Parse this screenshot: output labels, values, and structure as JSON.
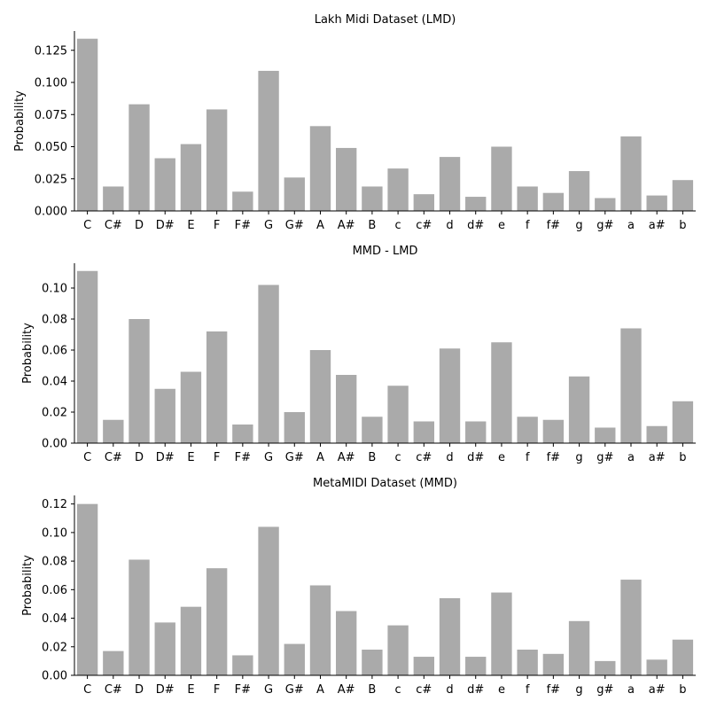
{
  "chart_data": [
    {
      "type": "bar",
      "title": "Lakh Midi Dataset (LMD)",
      "xlabel": "",
      "ylabel": "Probability",
      "ylim": [
        0,
        0.14
      ],
      "yticks": [
        0.0,
        0.025,
        0.05,
        0.075,
        0.1,
        0.125
      ],
      "ytick_labels": [
        "0.000",
        "0.025",
        "0.050",
        "0.075",
        "0.100",
        "0.125"
      ],
      "categories": [
        "C",
        "C#",
        "D",
        "D#",
        "E",
        "F",
        "F#",
        "G",
        "G#",
        "A",
        "A#",
        "B",
        "c",
        "c#",
        "d",
        "d#",
        "e",
        "f",
        "f#",
        "g",
        "g#",
        "a",
        "a#",
        "b"
      ],
      "values": [
        0.134,
        0.019,
        0.083,
        0.041,
        0.052,
        0.079,
        0.015,
        0.109,
        0.026,
        0.066,
        0.049,
        0.019,
        0.033,
        0.013,
        0.042,
        0.011,
        0.05,
        0.019,
        0.014,
        0.031,
        0.01,
        0.058,
        0.012,
        0.024
      ],
      "bar_color": "#aaaaaa"
    },
    {
      "type": "bar",
      "title": "MMD - LMD",
      "xlabel": "",
      "ylabel": "Probability",
      "ylim": [
        0,
        0.116
      ],
      "yticks": [
        0.0,
        0.02,
        0.04,
        0.06,
        0.08,
        0.1
      ],
      "ytick_labels": [
        "0.00",
        "0.02",
        "0.04",
        "0.06",
        "0.08",
        "0.10"
      ],
      "categories": [
        "C",
        "C#",
        "D",
        "D#",
        "E",
        "F",
        "F#",
        "G",
        "G#",
        "A",
        "A#",
        "B",
        "c",
        "c#",
        "d",
        "d#",
        "e",
        "f",
        "f#",
        "g",
        "g#",
        "a",
        "a#",
        "b"
      ],
      "values": [
        0.111,
        0.015,
        0.08,
        0.035,
        0.046,
        0.072,
        0.012,
        0.102,
        0.02,
        0.06,
        0.044,
        0.017,
        0.037,
        0.014,
        0.061,
        0.014,
        0.065,
        0.017,
        0.015,
        0.043,
        0.01,
        0.074,
        0.011,
        0.027
      ],
      "bar_color": "#aaaaaa"
    },
    {
      "type": "bar",
      "title": "MetaMIDI Dataset (MMD)",
      "xlabel": "",
      "ylabel": "Probability",
      "ylim": [
        0,
        0.126
      ],
      "yticks": [
        0.0,
        0.02,
        0.04,
        0.06,
        0.08,
        0.1,
        0.12
      ],
      "ytick_labels": [
        "0.00",
        "0.02",
        "0.04",
        "0.06",
        "0.08",
        "0.10",
        "0.12"
      ],
      "categories": [
        "C",
        "C#",
        "D",
        "D#",
        "E",
        "F",
        "F#",
        "G",
        "G#",
        "A",
        "A#",
        "B",
        "c",
        "c#",
        "d",
        "d#",
        "e",
        "f",
        "f#",
        "g",
        "g#",
        "a",
        "a#",
        "b"
      ],
      "values": [
        0.12,
        0.017,
        0.081,
        0.037,
        0.048,
        0.075,
        0.014,
        0.104,
        0.022,
        0.063,
        0.045,
        0.018,
        0.035,
        0.013,
        0.054,
        0.013,
        0.058,
        0.018,
        0.015,
        0.038,
        0.01,
        0.067,
        0.011,
        0.025
      ],
      "bar_color": "#aaaaaa"
    }
  ]
}
